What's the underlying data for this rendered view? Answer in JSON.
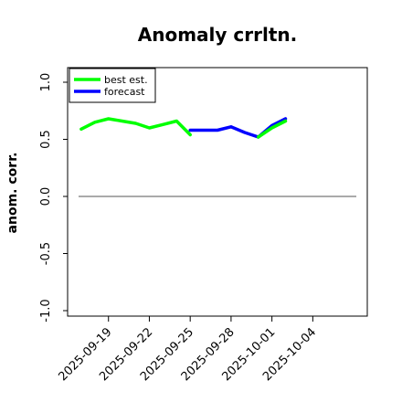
{
  "chart_data": {
    "type": "line",
    "title": "Anomaly crrltn.",
    "xlabel": "",
    "ylabel": "anom. corr.",
    "ylim": [
      -1.0,
      1.0
    ],
    "yticks": [
      "-1.0",
      "-0.5",
      "0.0",
      "0.5",
      "1.0"
    ],
    "ytick_values": [
      -1.0,
      -0.5,
      0.0,
      0.5,
      1.0
    ],
    "xlim": [
      "2025-09-16",
      "2025-10-08"
    ],
    "xticks": [
      "2025-09-19",
      "2025-09-22",
      "2025-09-25",
      "2025-09-28",
      "2025-10-01",
      "2025-10-04"
    ],
    "highlight_tick": "2025-09-25",
    "highlight_color": "#228B22",
    "reference_line_y": 0.0,
    "legend_position": "upper-left",
    "grid": false,
    "series": [
      {
        "name": "best est.",
        "color": "#00ff00",
        "x": [
          "2025-09-17",
          "2025-09-18",
          "2025-09-19",
          "2025-09-20",
          "2025-09-21",
          "2025-09-22",
          "2025-09-23",
          "2025-09-24",
          "2025-09-25"
        ],
        "y": [
          0.59,
          0.65,
          0.68,
          0.66,
          0.64,
          0.6,
          0.63,
          0.66,
          0.54
        ]
      },
      {
        "name": "forecast",
        "color": "#0000ff",
        "x": [
          "2025-09-25",
          "2025-09-26",
          "2025-09-27",
          "2025-09-28",
          "2025-09-29",
          "2025-09-30",
          "2025-10-01",
          "2025-10-02"
        ],
        "y": [
          0.58,
          0.58,
          0.58,
          0.61,
          0.56,
          0.52,
          0.62,
          0.68
        ]
      },
      {
        "name": "",
        "color": "#00ff00",
        "x": [
          "2025-09-30",
          "2025-10-01",
          "2025-10-02"
        ],
        "y": [
          0.52,
          0.6,
          0.66
        ]
      }
    ]
  }
}
